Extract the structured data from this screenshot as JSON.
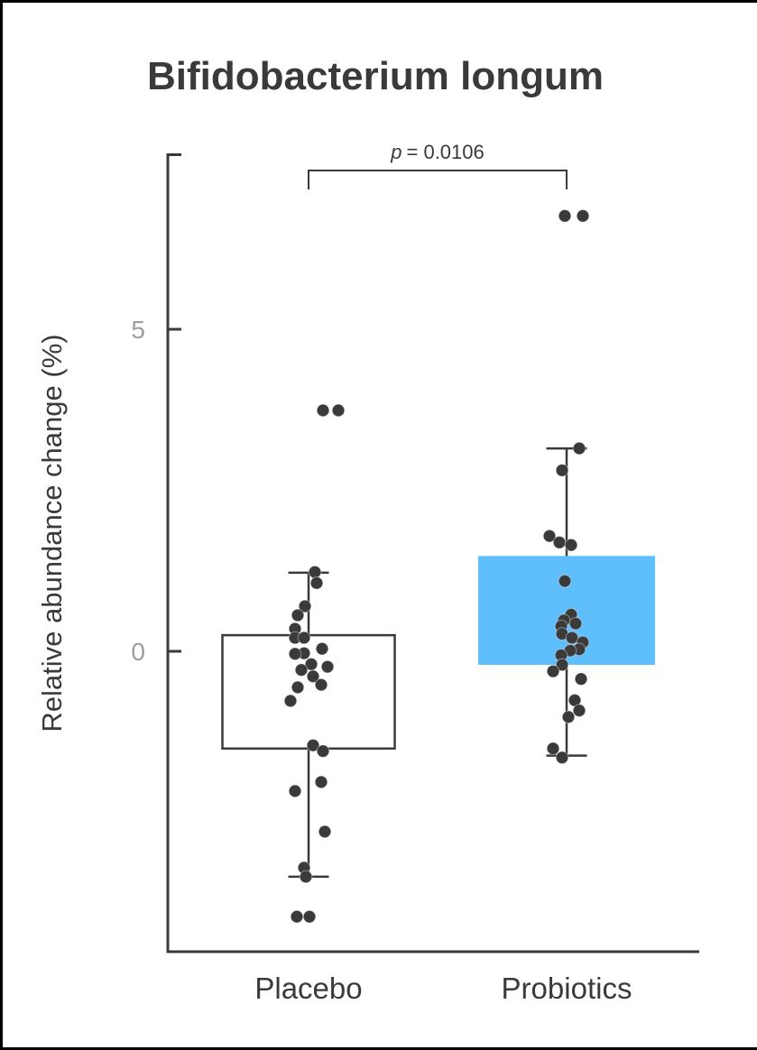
{
  "chart_data": {
    "type": "boxplot-scatter",
    "title": "Bifidobacterium longum",
    "ylabel": "Relative abundance change (%)",
    "xlabel": "",
    "ylim": [
      -4.66,
      7.73
    ],
    "grid": false,
    "legend": "none",
    "yticks": [
      {
        "value": 0,
        "label": "0"
      },
      {
        "value": 5,
        "label": "5"
      }
    ],
    "significance": {
      "symbol": "p",
      "text": "= 0.0106",
      "compared_groups": [
        "Placebo",
        "Probiotics"
      ]
    },
    "colors": {
      "axis": "#3a3a3a",
      "text": "#3a3a3a",
      "tick_label": "#9e9e9e",
      "point": "#3a3a3a",
      "probiotics_box_fill": "#5fbffc",
      "placebo_box_fill": "#ffffff",
      "frame_border": "#000000"
    },
    "groups": [
      {
        "label": "Placebo",
        "box": {
          "q1": -1.51,
          "q3": 0.25,
          "whisker_low": -3.5,
          "whisker_high": 1.22,
          "fill": "#ffffff",
          "outline": "#3a3a3a"
        },
        "points": [
          [
            16,
            3.74
          ],
          [
            33,
            3.74
          ],
          [
            7,
            1.23
          ],
          [
            9,
            1.06
          ],
          [
            -4,
            0.7
          ],
          [
            -12,
            0.56
          ],
          [
            -15,
            0.35
          ],
          [
            -15,
            0.21
          ],
          [
            -5,
            0.21
          ],
          [
            15,
            0.04
          ],
          [
            -5,
            -0.03
          ],
          [
            -15,
            -0.04
          ],
          [
            3,
            -0.2
          ],
          [
            21,
            -0.24
          ],
          [
            -8,
            -0.29
          ],
          [
            5,
            -0.39
          ],
          [
            14,
            -0.52
          ],
          [
            -12,
            -0.56
          ],
          [
            -20,
            -0.77
          ],
          [
            5,
            -1.46
          ],
          [
            16,
            -1.55
          ],
          [
            14,
            -2.03
          ],
          [
            -15,
            -2.17
          ],
          [
            18,
            -2.8
          ],
          [
            -5,
            -3.36
          ],
          [
            -3,
            -3.5
          ],
          [
            -13,
            -4.12
          ],
          [
            1,
            -4.12
          ]
        ]
      },
      {
        "label": "Probiotics",
        "box": {
          "q1": -0.21,
          "q3": 1.48,
          "whisker_low": -1.62,
          "whisker_high": 3.15,
          "fill": "#5fbffc",
          "outline": "none"
        },
        "points": [
          [
            -2,
            6.76
          ],
          [
            18,
            6.76
          ],
          [
            14,
            3.15
          ],
          [
            -5,
            2.81
          ],
          [
            -19,
            1.79
          ],
          [
            -8,
            1.69
          ],
          [
            5,
            1.65
          ],
          [
            -2,
            1.09
          ],
          [
            5,
            0.57
          ],
          [
            -3,
            0.48
          ],
          [
            10,
            0.43
          ],
          [
            -6,
            0.39
          ],
          [
            -5,
            0.27
          ],
          [
            6,
            0.21
          ],
          [
            18,
            0.14
          ],
          [
            14,
            0.03
          ],
          [
            4,
            0.01
          ],
          [
            -6,
            -0.06
          ],
          [
            -5,
            -0.21
          ],
          [
            -15,
            -0.31
          ],
          [
            16,
            -0.43
          ],
          [
            9,
            -0.76
          ],
          [
            14,
            -0.92
          ],
          [
            2,
            -1.02
          ],
          [
            -15,
            -1.51
          ],
          [
            -5,
            -1.65
          ]
        ]
      }
    ]
  }
}
